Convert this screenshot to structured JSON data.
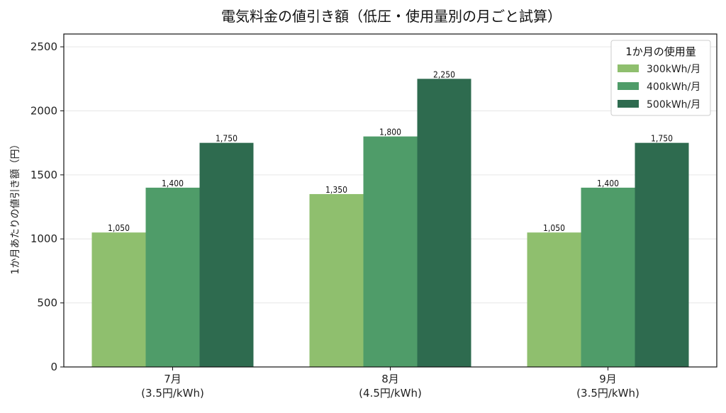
{
  "chart_data": {
    "type": "bar",
    "title": "電気料金の値引き額（低圧・使用量別の月ごと試算）",
    "ylabel": "1か月あたりの値引き額（円）",
    "xlabel": "",
    "ylim": [
      0,
      2600
    ],
    "yticks": [
      "0",
      "500",
      "1000",
      "1500",
      "2000",
      "2500"
    ],
    "grid": true,
    "categories": [
      {
        "line1": "7月",
        "line2": "(3.5円/kWh)"
      },
      {
        "line1": "8月",
        "line2": "(4.5円/kWh)"
      },
      {
        "line1": "9月",
        "line2": "(3.5円/kWh)"
      }
    ],
    "series": [
      {
        "name": "300kWh/月",
        "color": "#8fbf6e",
        "values": [
          1050,
          1350,
          1050
        ],
        "labels": [
          "1,050",
          "1,350",
          "1,050"
        ]
      },
      {
        "name": "400kWh/月",
        "color": "#4f9c69",
        "values": [
          1400,
          1800,
          1400
        ],
        "labels": [
          "1,400",
          "1,800",
          "1,400"
        ]
      },
      {
        "name": "500kWh/月",
        "color": "#2e6b4f",
        "values": [
          1750,
          2250,
          1750
        ],
        "labels": [
          "1,750",
          "2,250",
          "1,750"
        ]
      }
    ],
    "legend": {
      "title": "1か月の使用量",
      "position": "top-right"
    }
  }
}
